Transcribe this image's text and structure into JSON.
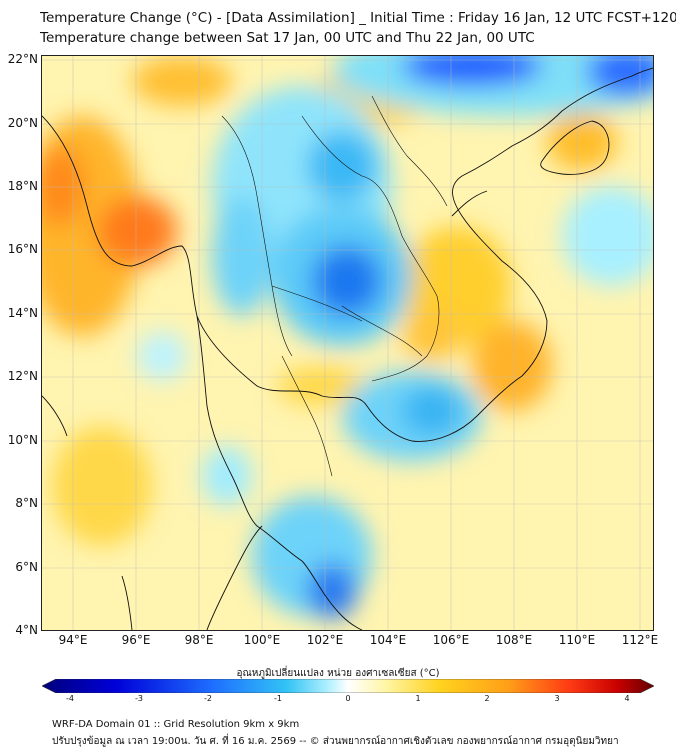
{
  "header": {
    "title_line1": "Temperature Change (°C) - [Data Assimilation] _ Initial Time : Friday 16 Jan, 12 UTC FCST+120",
    "title_line2": "Temperature change between Sat 17 Jan, 00 UTC and Thu 22 Jan, 00 UTC"
  },
  "map": {
    "y_ticks": [
      "22°N",
      "20°N",
      "18°N",
      "16°N",
      "14°N",
      "12°N",
      "10°N",
      "8°N",
      "6°N",
      "4°N"
    ],
    "x_ticks": [
      "94°E",
      "96°E",
      "98°E",
      "100°E",
      "102°E",
      "104°E",
      "106°E",
      "108°E",
      "110°E",
      "112°E"
    ],
    "background_color": "#fff9c4",
    "coastline_color": "#111111"
  },
  "colorbar": {
    "title": "อุณหภูมิเปลี่ยนแปลง หน่วย องศาเซลเซียส (°C)",
    "labels": [
      "-4",
      "-3",
      "-2",
      "-1",
      "0",
      "1",
      "2",
      "3",
      "4"
    ],
    "stops": [
      "#00007a",
      "#0000d8",
      "#1e6fff",
      "#33c3f5",
      "#b6f2ff",
      "#ffffff",
      "#fff6a8",
      "#ffd21e",
      "#ffa018",
      "#ff3c14",
      "#c80000",
      "#640000"
    ]
  },
  "footer": {
    "line1": "WRF-DA Domain 01 :: Grid Resolution 9km x 9km",
    "line2": "ปรับปรุงข้อมูล ณ เวลา 19:00น. วัน ศ. ที่ 16 ม.ค. 2569 -- © ส่วนพยากรณ์อากาศเชิงตัวเลข กองพยากรณ์อากาศ กรมอุตุนิยมวิทยา"
  }
}
